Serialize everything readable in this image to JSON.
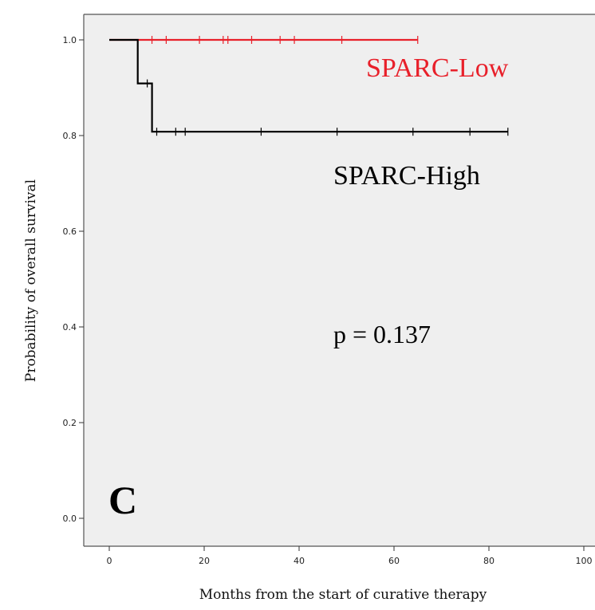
{
  "chart_data": {
    "type": "line",
    "subtype": "kaplan-meier",
    "title": "",
    "xlabel": "Months from the start of curative therapy",
    "ylabel": "Probability of overall survival",
    "xlim": [
      0,
      100
    ],
    "ylim": [
      0.0,
      1.0
    ],
    "x_ticks": [
      "0",
      "20",
      "40",
      "60",
      "80",
      "100"
    ],
    "y_ticks": [
      "0.0",
      "0.2",
      "0.4",
      "0.6",
      "0.8",
      "1.0"
    ],
    "grid": false,
    "series": [
      {
        "name": "SPARC-Low",
        "color": "#e8202a",
        "steps": [
          [
            0,
            1.0
          ],
          [
            65,
            1.0
          ]
        ],
        "censor_x": [
          9,
          12,
          19,
          24,
          25,
          30,
          36,
          39,
          49,
          65
        ]
      },
      {
        "name": "SPARC-High",
        "color": "#000000",
        "steps": [
          [
            0,
            1.0
          ],
          [
            6,
            1.0
          ],
          [
            6,
            0.909
          ],
          [
            9,
            0.909
          ],
          [
            9,
            0.808
          ],
          [
            84,
            0.808
          ]
        ],
        "censor_x": [
          8,
          10,
          14,
          16,
          32,
          48,
          64,
          76,
          84
        ]
      }
    ],
    "annotations": {
      "p_value": "p = 0.137",
      "panel_label": "C"
    }
  },
  "colors": {
    "plot_background": "#efefef",
    "frame": "#555555"
  }
}
